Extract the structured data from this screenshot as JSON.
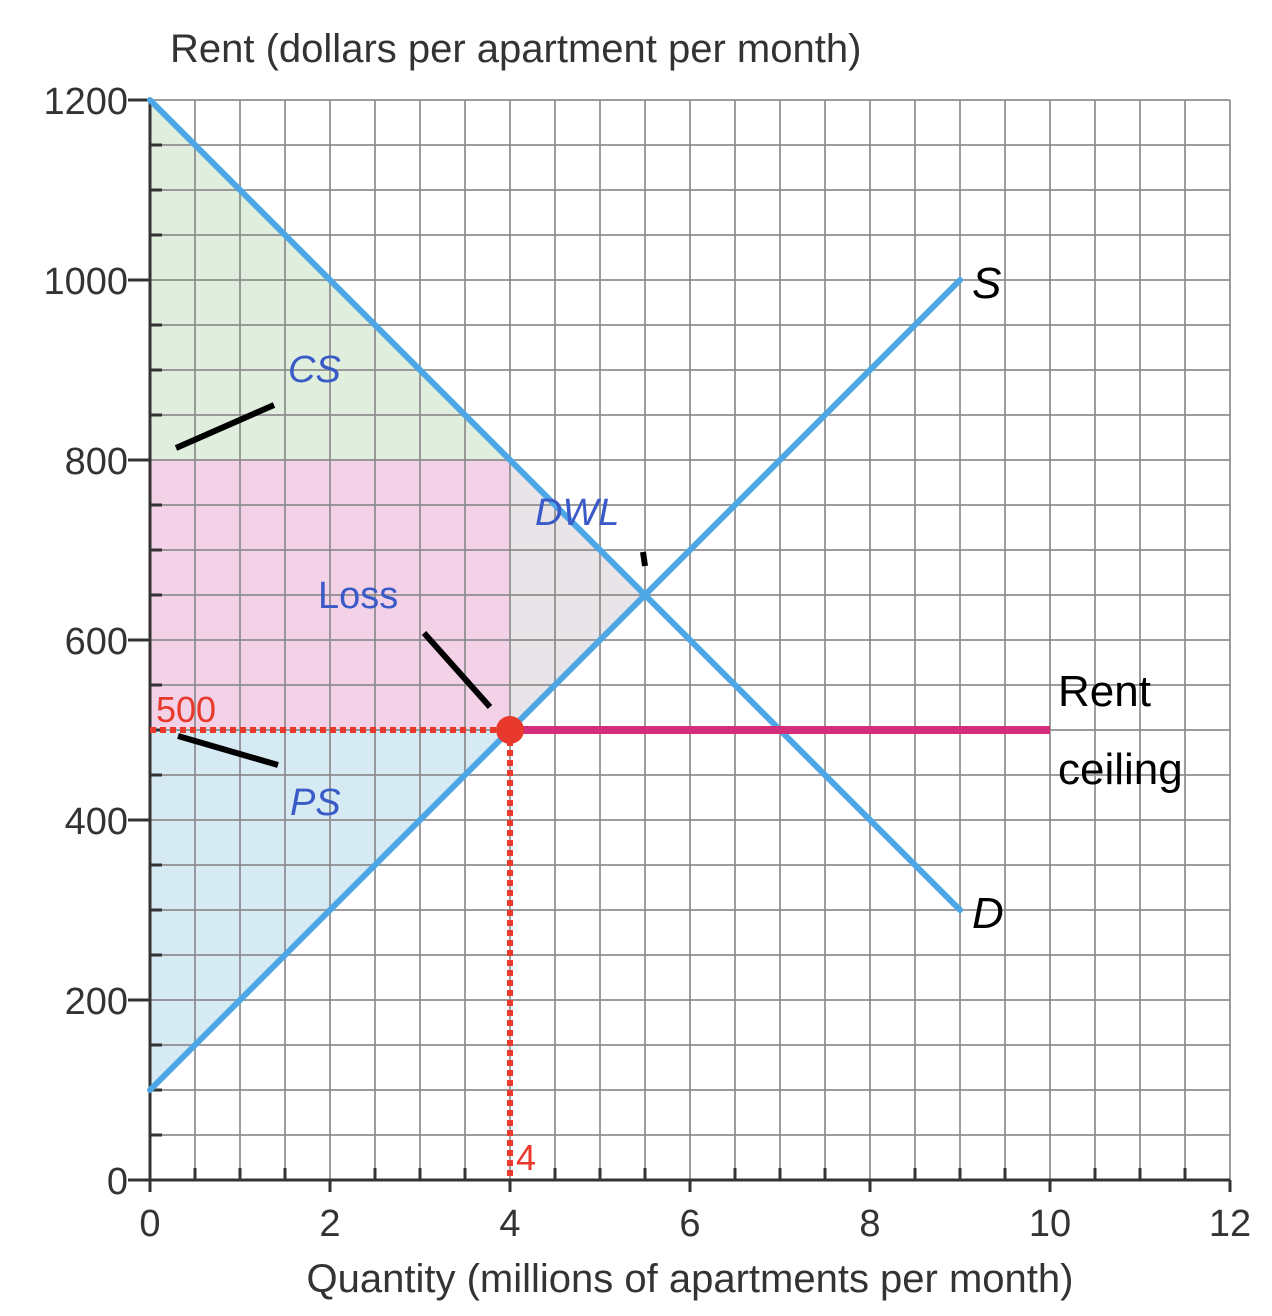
{
  "chart_data": {
    "type": "line",
    "ylabel": "Rent (dollars per apartment per month)",
    "xlabel": "Quantity (millions of apartments per month)",
    "xlim": [
      0,
      12
    ],
    "ylim": [
      0,
      1200
    ],
    "x_ticks": [
      0,
      2,
      4,
      6,
      8,
      10,
      12
    ],
    "y_ticks": [
      0,
      200,
      400,
      600,
      800,
      1000,
      1200
    ],
    "x_minor_step": 0.5,
    "y_minor_step": 50,
    "grid": true,
    "series": [
      {
        "name": "S",
        "x": [
          0,
          9
        ],
        "y": [
          100,
          1000
        ]
      },
      {
        "name": "D",
        "x": [
          0,
          9
        ],
        "y": [
          1200,
          300
        ]
      },
      {
        "name": "Rent ceiling",
        "x": [
          4,
          10
        ],
        "y": [
          500,
          500
        ]
      }
    ],
    "areas": [
      {
        "label": "CS",
        "points": [
          [
            0,
            1200
          ],
          [
            0,
            800
          ],
          [
            4,
            800
          ]
        ]
      },
      {
        "label": "Loss",
        "points": [
          [
            0,
            800
          ],
          [
            4,
            800
          ],
          [
            4,
            500
          ],
          [
            0,
            500
          ]
        ]
      },
      {
        "label": "PS",
        "points": [
          [
            0,
            500
          ],
          [
            4,
            500
          ],
          [
            0,
            100
          ]
        ]
      },
      {
        "label": "DWL",
        "points": [
          [
            4,
            800
          ],
          [
            5.5,
            650
          ],
          [
            4,
            500
          ]
        ]
      }
    ],
    "point": {
      "x": 4,
      "y": 500
    },
    "annotations": {
      "price_label": "500",
      "quantity_label": "4",
      "s_label": "S",
      "d_label": "D",
      "ceiling_label_line1": "Rent",
      "ceiling_label_line2": "ceiling"
    },
    "colors": {
      "curve": "#4da6e6",
      "ceiling": "#d22e7a",
      "marker": "#e8392c",
      "cs_fill": "#dfeedd",
      "loss_fill": "#f3d2e8",
      "ps_fill": "#d5eaf3",
      "dwl_fill": "#e8e4e8",
      "area_label": "#3a5bc7",
      "grid": "#8c8c8c",
      "axis": "#333333"
    }
  }
}
